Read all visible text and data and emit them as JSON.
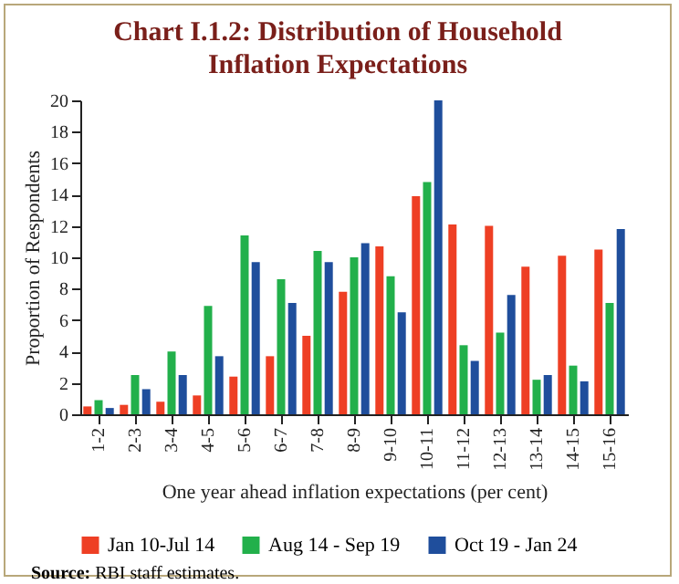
{
  "chart_data": {
    "type": "bar",
    "title": "Chart I.1.2: Distribution of Household Inflation Expectations",
    "xlabel": "One year ahead inflation expectations (per cent)",
    "ylabel": "Proportion of Respondents",
    "categories": [
      "1-2",
      "2-3",
      "3-4",
      "4-5",
      "5-6",
      "6-7",
      "7-8",
      "8-9",
      "9-10",
      "10-11",
      "11-12",
      "12-13",
      "13-14",
      "14-15",
      "15-16"
    ],
    "series": [
      {
        "name": "Jan 10-Jul 14",
        "color": "#ee3f24",
        "values": [
          0.5,
          0.6,
          0.8,
          1.2,
          2.4,
          3.7,
          5.0,
          7.8,
          10.7,
          13.9,
          12.1,
          12.0,
          9.4,
          10.1,
          10.5
        ]
      },
      {
        "name": "Aug 14 - Sep 19",
        "color": "#22b04b",
        "values": [
          0.9,
          2.5,
          4.0,
          6.9,
          11.4,
          8.6,
          10.4,
          10.0,
          8.8,
          14.8,
          4.4,
          5.2,
          2.2,
          3.1,
          7.1
        ]
      },
      {
        "name": "Oct 19 - Jan 24",
        "color": "#1f4e9c",
        "values": [
          0.4,
          1.6,
          2.5,
          3.7,
          9.7,
          7.1,
          9.7,
          10.9,
          6.5,
          20.0,
          3.4,
          7.6,
          2.5,
          2.1,
          11.8
        ]
      }
    ],
    "ylim": [
      0,
      20
    ],
    "yticks": [
      0,
      2,
      4,
      6,
      8,
      10,
      12,
      14,
      16,
      18,
      20
    ],
    "grid": false,
    "legend": "bottom",
    "annotations": [
      "Source: RBI staff estimates."
    ]
  }
}
